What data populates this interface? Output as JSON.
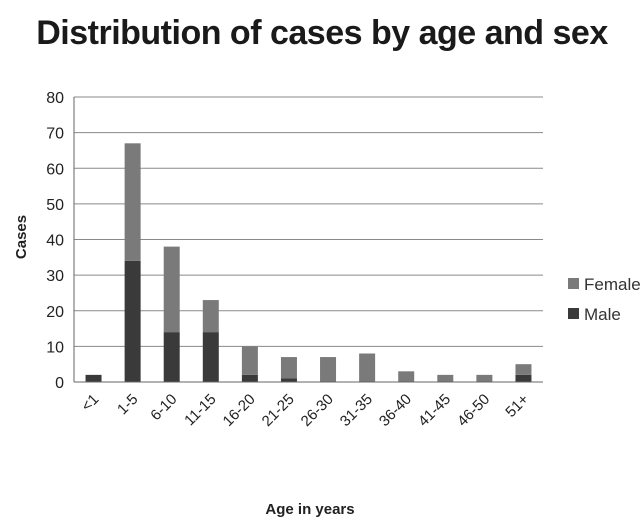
{
  "chart_data": {
    "type": "bar",
    "stacked": true,
    "title": "Distribution of cases by age and sex",
    "xlabel": "Age in years",
    "ylabel": "Cases",
    "ylim": [
      0,
      80
    ],
    "yticks": [
      0,
      10,
      20,
      30,
      40,
      50,
      60,
      70,
      80
    ],
    "grid": true,
    "legend_position": "right",
    "categories": [
      "<1",
      "1-5",
      "6-10",
      "11-15",
      "16-20",
      "21-25",
      "26-30",
      "31-35",
      "36-40",
      "41-45",
      "46-50",
      "51+"
    ],
    "series": [
      {
        "name": "Male",
        "color": "#3a3a3a",
        "values": [
          2,
          34,
          14,
          14,
          2,
          1,
          0,
          0,
          0,
          0,
          0,
          2
        ]
      },
      {
        "name": "Female",
        "color": "#7a7a7a",
        "values": [
          0,
          33,
          24,
          9,
          8,
          6,
          7,
          8,
          3,
          2,
          2,
          3
        ]
      }
    ]
  }
}
